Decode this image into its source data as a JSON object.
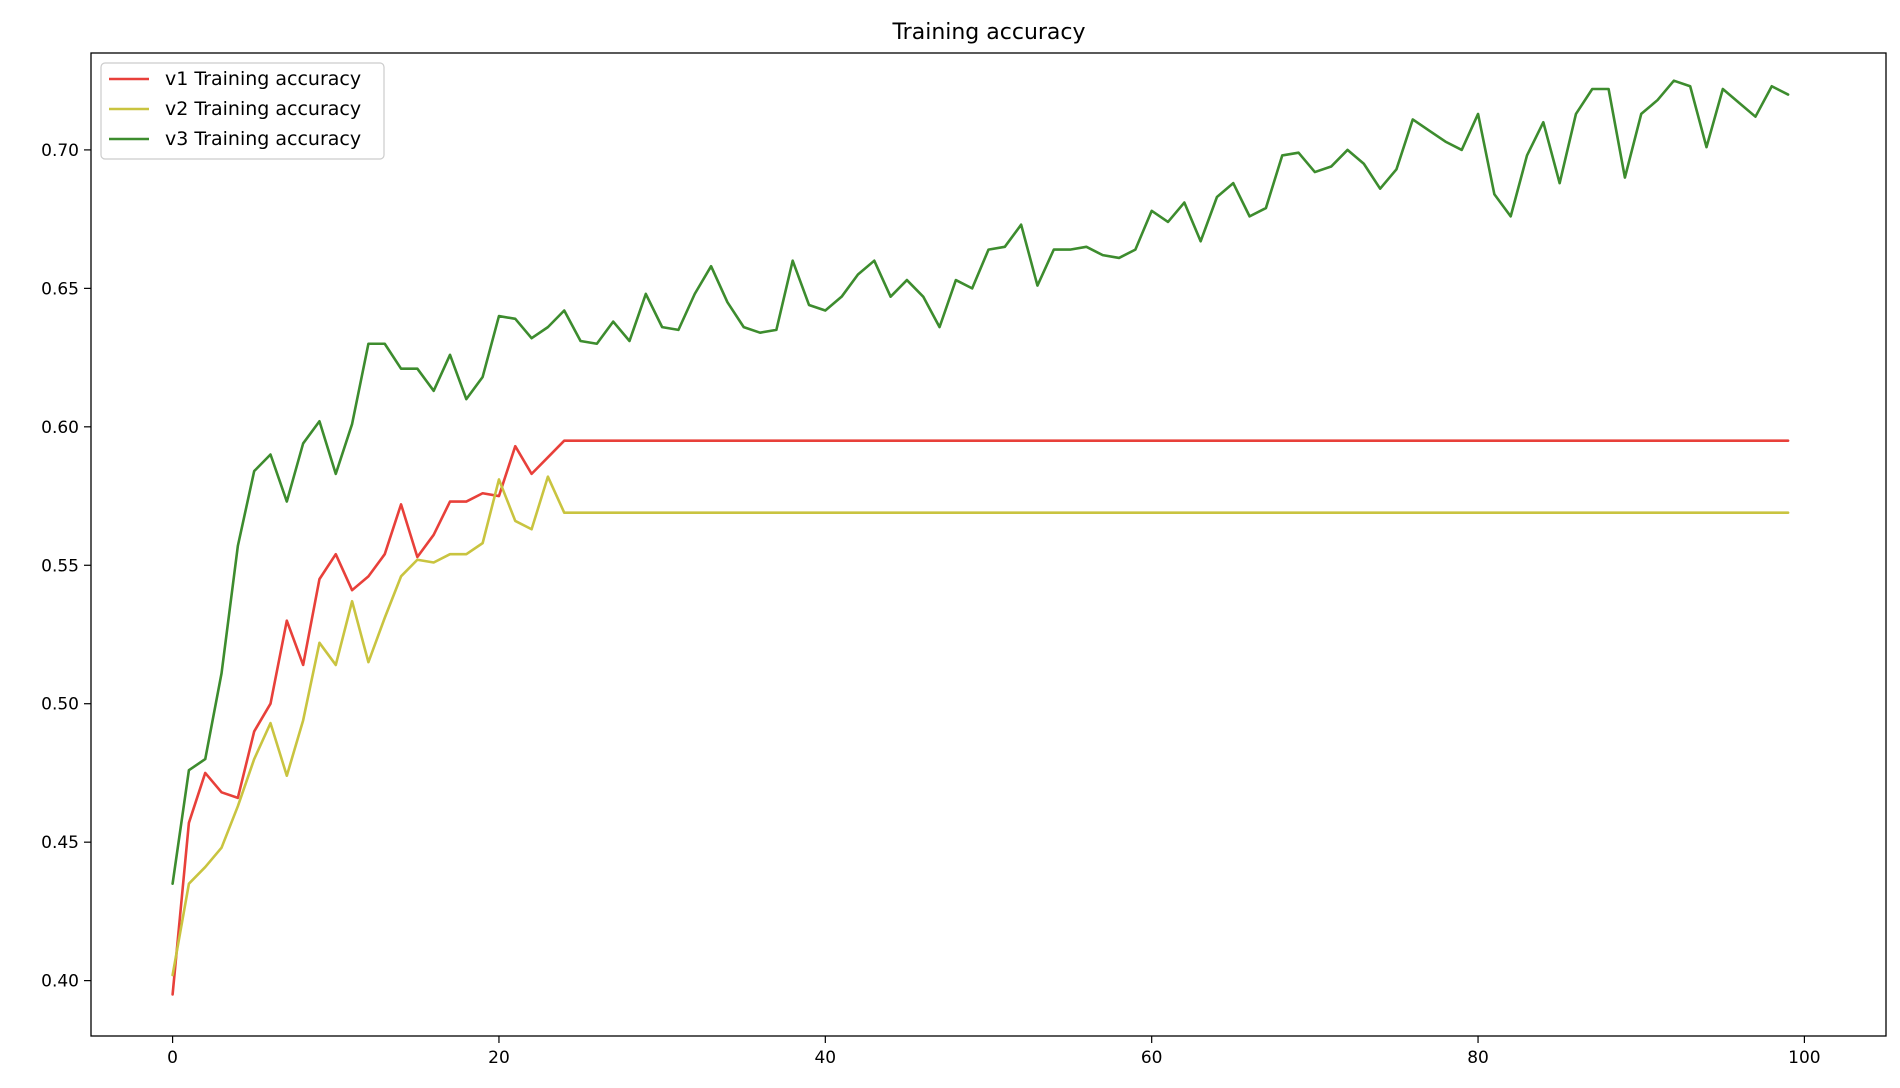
{
  "chart_data": {
    "type": "line",
    "title": "Training accuracy",
    "xlabel": "",
    "ylabel": "",
    "xlim": [
      -5,
      105
    ],
    "ylim": [
      0.38,
      0.735
    ],
    "xticks": [
      0,
      20,
      40,
      60,
      80,
      100
    ],
    "yticks": [
      0.4,
      0.45,
      0.5,
      0.55,
      0.6,
      0.65,
      0.7
    ],
    "ytick_labels": [
      "0.40",
      "0.45",
      "0.50",
      "0.55",
      "0.60",
      "0.65",
      "0.70"
    ],
    "xtick_labels": [
      "0",
      "20",
      "40",
      "60",
      "80",
      "100"
    ],
    "grid": false,
    "legend": "top-left",
    "series": [
      {
        "name": "v1 Training accuracy",
        "color": "#e8403a",
        "x": [
          0,
          1,
          2,
          3,
          4,
          5,
          6,
          7,
          8,
          9,
          10,
          11,
          12,
          13,
          14,
          15,
          16,
          17,
          18,
          19,
          20,
          21,
          22,
          23,
          24,
          99
        ],
        "values": [
          0.395,
          0.457,
          0.475,
          0.468,
          0.466,
          0.49,
          0.5,
          0.53,
          0.514,
          0.545,
          0.554,
          0.541,
          0.546,
          0.554,
          0.572,
          0.553,
          0.561,
          0.573,
          0.573,
          0.576,
          0.575,
          0.593,
          0.583,
          0.589,
          0.595,
          0.595
        ]
      },
      {
        "name": "v2 Training accuracy",
        "color": "#c9c440",
        "x": [
          0,
          1,
          2,
          3,
          4,
          5,
          6,
          7,
          8,
          9,
          10,
          11,
          12,
          13,
          14,
          15,
          16,
          17,
          18,
          19,
          20,
          21,
          22,
          23,
          24,
          99
        ],
        "values": [
          0.402,
          0.435,
          0.441,
          0.448,
          0.463,
          0.48,
          0.493,
          0.474,
          0.494,
          0.522,
          0.514,
          0.537,
          0.515,
          0.531,
          0.546,
          0.552,
          0.551,
          0.554,
          0.554,
          0.558,
          0.581,
          0.566,
          0.563,
          0.582,
          0.569,
          0.569
        ]
      },
      {
        "name": "v3 Training accuracy",
        "color": "#3d8c2e",
        "x": [
          0,
          1,
          2,
          3,
          4,
          5,
          6,
          7,
          8,
          9,
          10,
          11,
          12,
          13,
          14,
          15,
          16,
          17,
          18,
          19,
          20,
          21,
          22,
          23,
          24,
          25,
          26,
          27,
          28,
          29,
          30,
          31,
          32,
          33,
          34,
          35,
          36,
          37,
          38,
          39,
          40,
          41,
          42,
          43,
          44,
          45,
          46,
          47,
          48,
          49,
          50,
          51,
          52,
          53,
          54,
          55,
          56,
          57,
          58,
          59,
          60,
          61,
          62,
          63,
          64,
          65,
          66,
          67,
          68,
          69,
          70,
          71,
          72,
          73,
          74,
          75,
          76,
          77,
          78,
          79,
          80,
          81,
          82,
          83,
          84,
          85,
          86,
          87,
          88,
          89,
          90,
          91,
          92,
          93,
          94,
          95,
          96,
          97,
          98,
          99
        ],
        "values": [
          0.435,
          0.476,
          0.48,
          0.511,
          0.557,
          0.584,
          0.59,
          0.573,
          0.594,
          0.602,
          0.583,
          0.601,
          0.63,
          0.63,
          0.621,
          0.621,
          0.613,
          0.626,
          0.61,
          0.618,
          0.64,
          0.639,
          0.632,
          0.636,
          0.642,
          0.631,
          0.63,
          0.638,
          0.631,
          0.648,
          0.636,
          0.635,
          0.648,
          0.658,
          0.645,
          0.636,
          0.634,
          0.635,
          0.66,
          0.644,
          0.642,
          0.647,
          0.655,
          0.66,
          0.647,
          0.653,
          0.647,
          0.636,
          0.653,
          0.65,
          0.664,
          0.665,
          0.673,
          0.651,
          0.664,
          0.664,
          0.665,
          0.662,
          0.661,
          0.664,
          0.678,
          0.674,
          0.681,
          0.667,
          0.683,
          0.688,
          0.676,
          0.679,
          0.698,
          0.699,
          0.692,
          0.694,
          0.7,
          0.695,
          0.686,
          0.693,
          0.711,
          0.707,
          0.703,
          0.7,
          0.713,
          0.684,
          0.676,
          0.698,
          0.71,
          0.688,
          0.713,
          0.722,
          0.722,
          0.69,
          0.713,
          0.718,
          0.725,
          0.723,
          0.701,
          0.722,
          0.717,
          0.712,
          0.723,
          0.72
        ]
      }
    ]
  }
}
